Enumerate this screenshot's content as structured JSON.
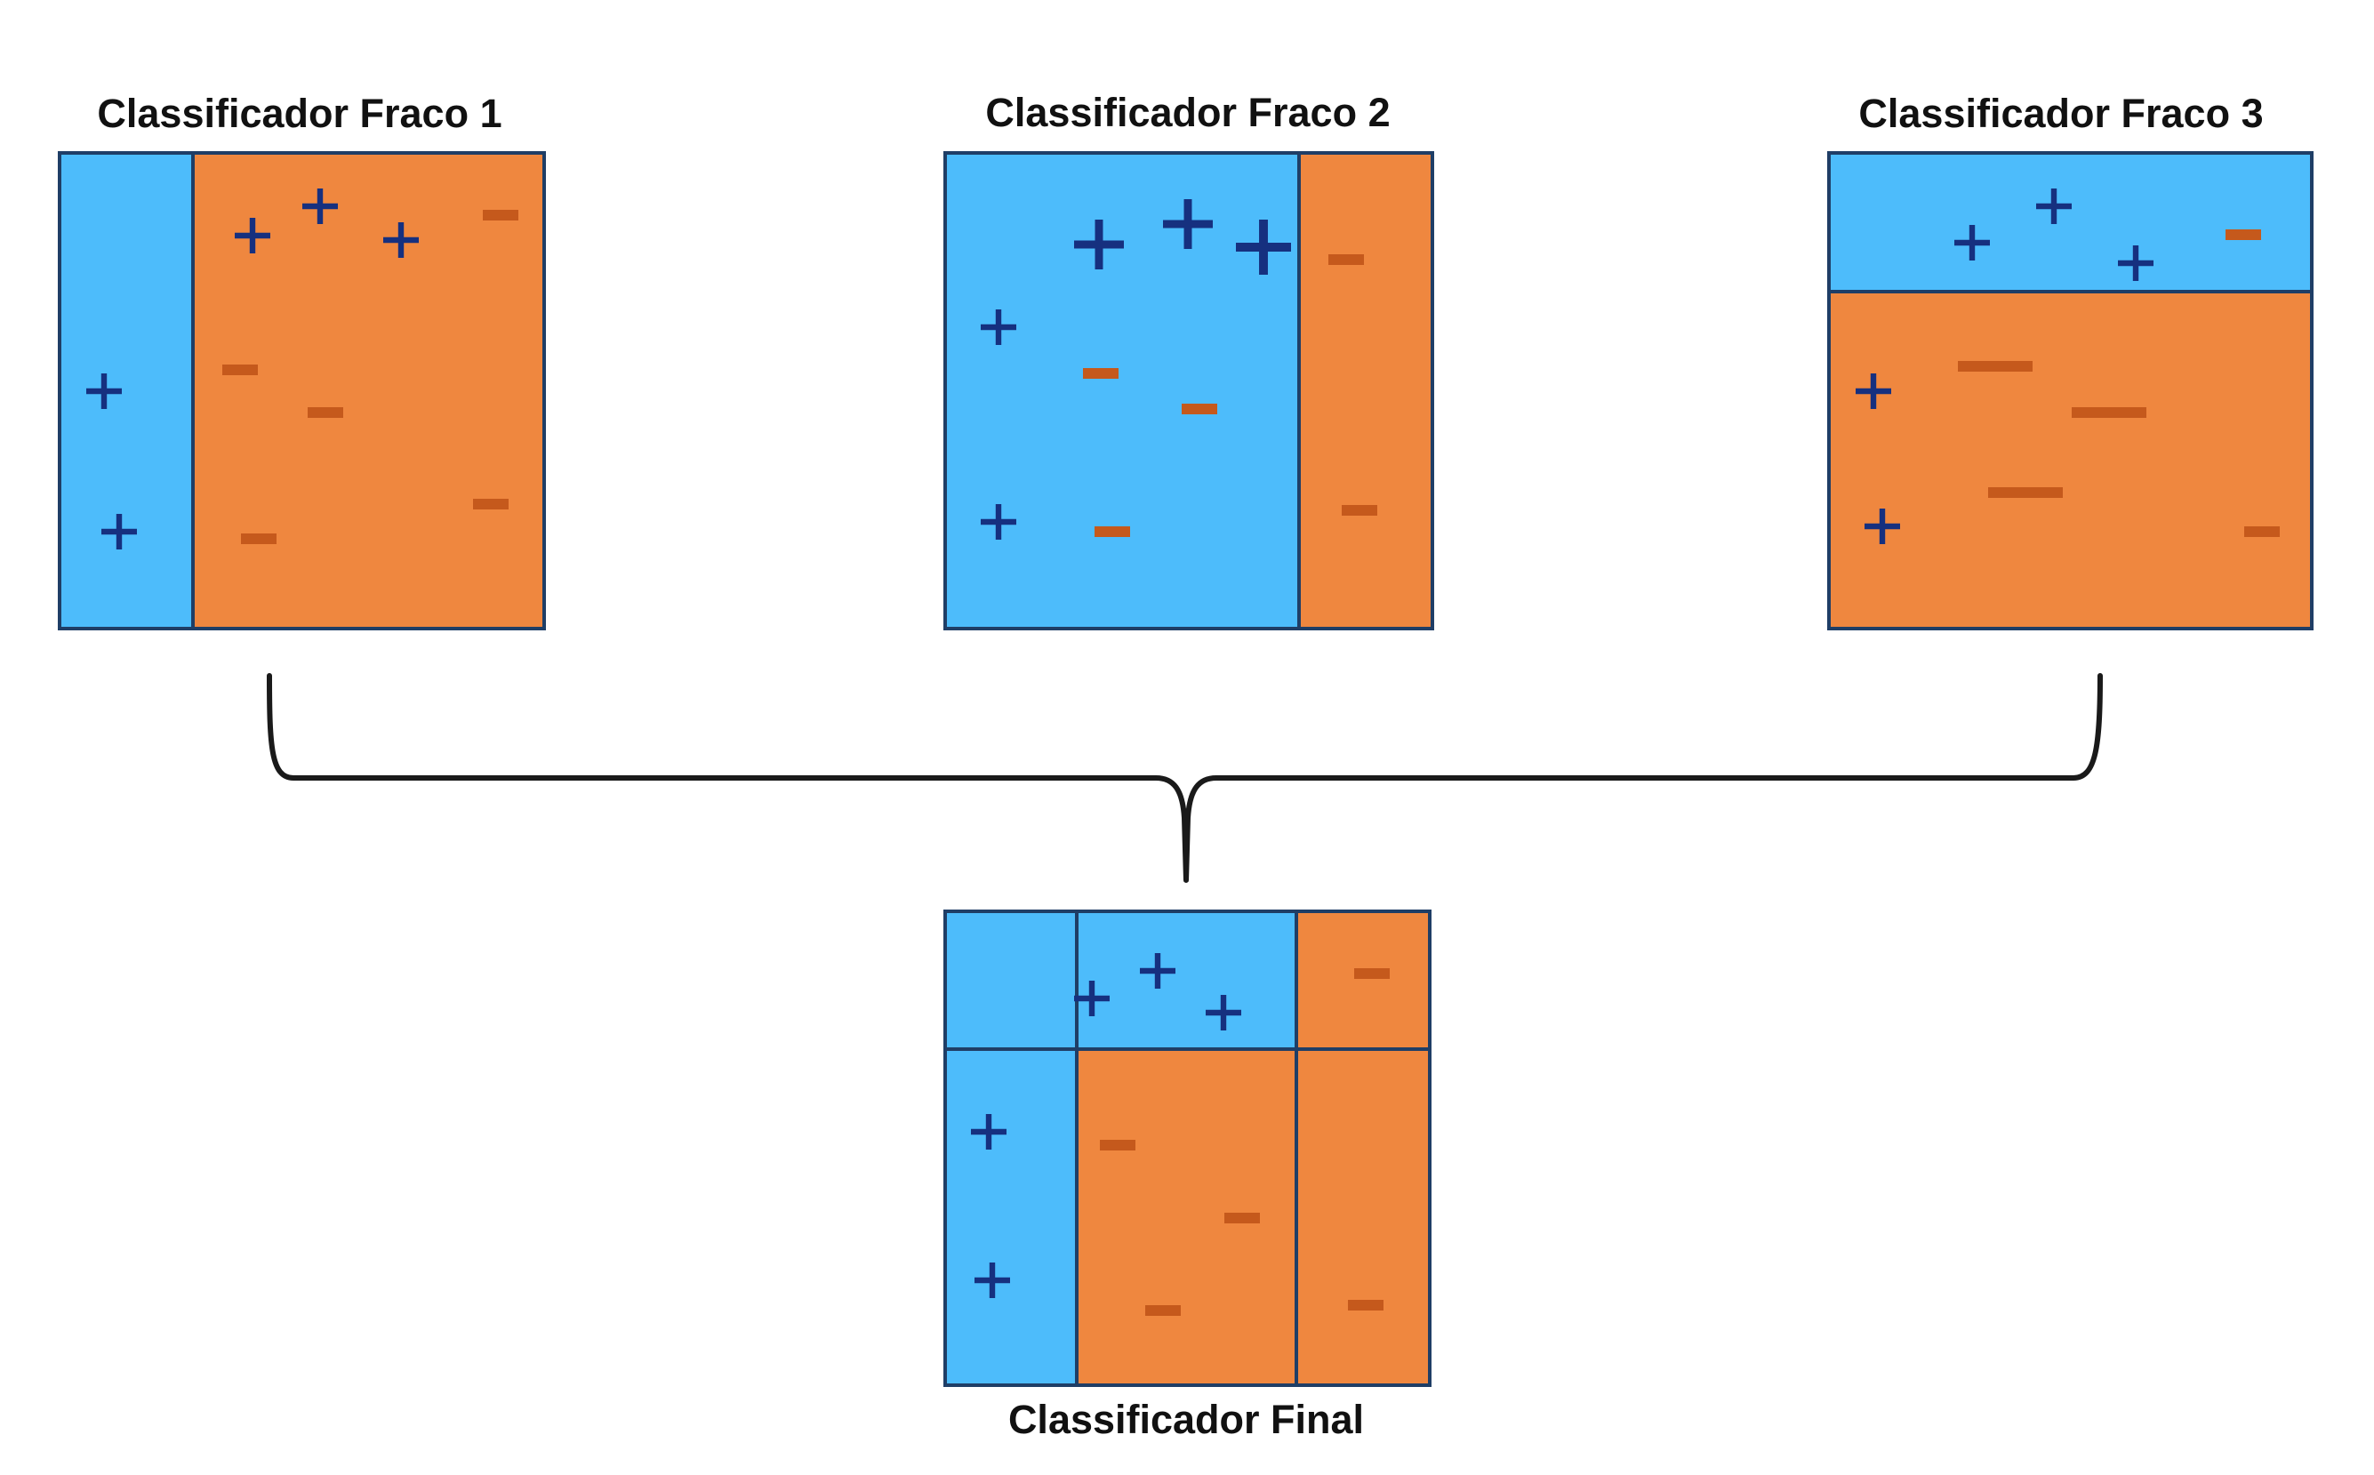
{
  "colors": {
    "positive_region": "#4dbcfb",
    "negative_region": "#ef873f",
    "plus_mark": "#16307f",
    "minus_mark": "#c5591c",
    "outline": "#1f3e66",
    "bracket": "#1a1a1a"
  },
  "symbols": {
    "plus": "+",
    "minus": "−"
  },
  "classifiers": [
    {
      "title": "Classificador Fraco 1"
    },
    {
      "title": "Classificador Fraco 2"
    },
    {
      "title": "Classificador Fraco 3"
    }
  ],
  "final": {
    "title": "Classificador Final"
  }
}
